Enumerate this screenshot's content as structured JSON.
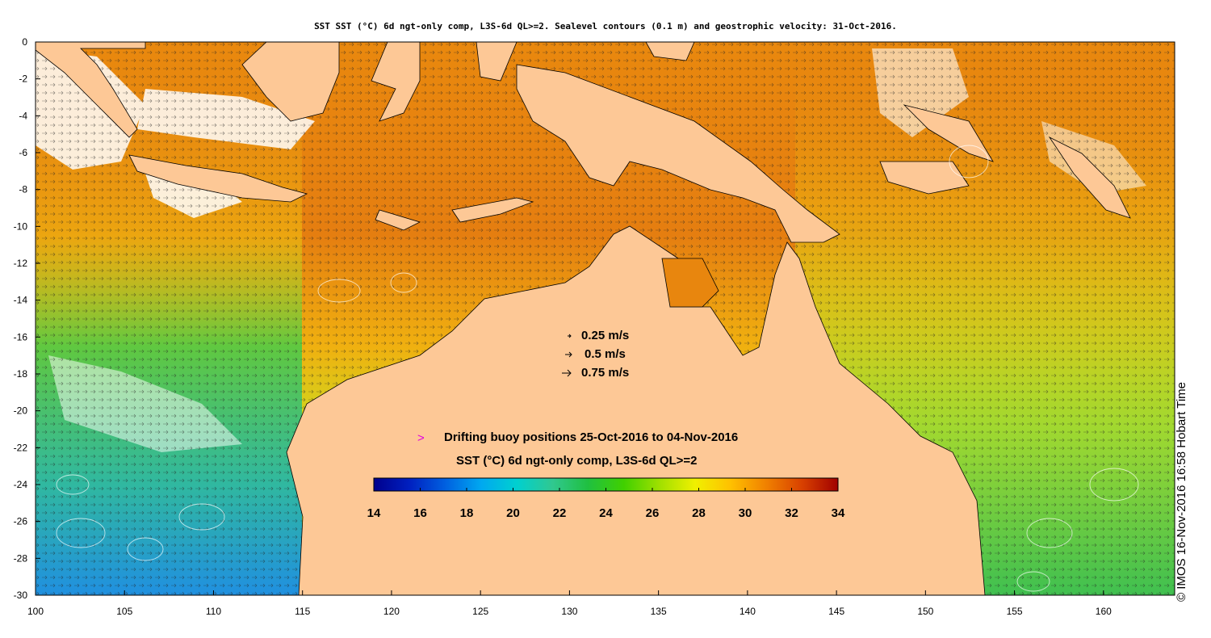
{
  "title": "SST SST (°C) 6d ngt-only comp, L3S-6d QL>=2. Sealevel contours (0.1 m) and geostrophic velocity: 31-Oct-2016.",
  "map": {
    "lon_range": [
      100,
      164
    ],
    "lat_range": [
      -30,
      0
    ],
    "x_ticks": [
      "100",
      "105",
      "110",
      "115",
      "120",
      "125",
      "130",
      "135",
      "140",
      "145",
      "150",
      "155",
      "160"
    ],
    "y_ticks": [
      "0",
      "-2",
      "-4",
      "-6",
      "-8",
      "-10",
      "-12",
      "-14",
      "-16",
      "-18",
      "-20",
      "-22",
      "-24",
      "-26",
      "-28",
      "-30"
    ],
    "land_color": "#fdc896",
    "no_data_color": "#ffffff"
  },
  "velocity_legend": [
    {
      "label": "0.25 m/s"
    },
    {
      "label": "0.5 m/s"
    },
    {
      "label": "0.75 m/s"
    }
  ],
  "buoy_legend": {
    "symbol": ">",
    "label": "Drifting buoy positions 25-Oct-2016 to 04-Nov-2016",
    "color": "#e000e0"
  },
  "colorbar": {
    "label": "SST (°C) 6d ngt-only comp, L3S-6d QL>=2",
    "ticks": [
      "14",
      "16",
      "18",
      "20",
      "22",
      "24",
      "26",
      "28",
      "30",
      "32",
      "34"
    ],
    "min": 14,
    "max": 34,
    "colors": [
      "#00008c",
      "#0020c0",
      "#0060e0",
      "#00a8f0",
      "#00d0d0",
      "#30c890",
      "#20c040",
      "#40d000",
      "#a0e000",
      "#f0f000",
      "#ffc000",
      "#f08000",
      "#d84000",
      "#a00000"
    ]
  },
  "credit": "© IMOS 16-Nov-2016 16:58 Hobart Time"
}
